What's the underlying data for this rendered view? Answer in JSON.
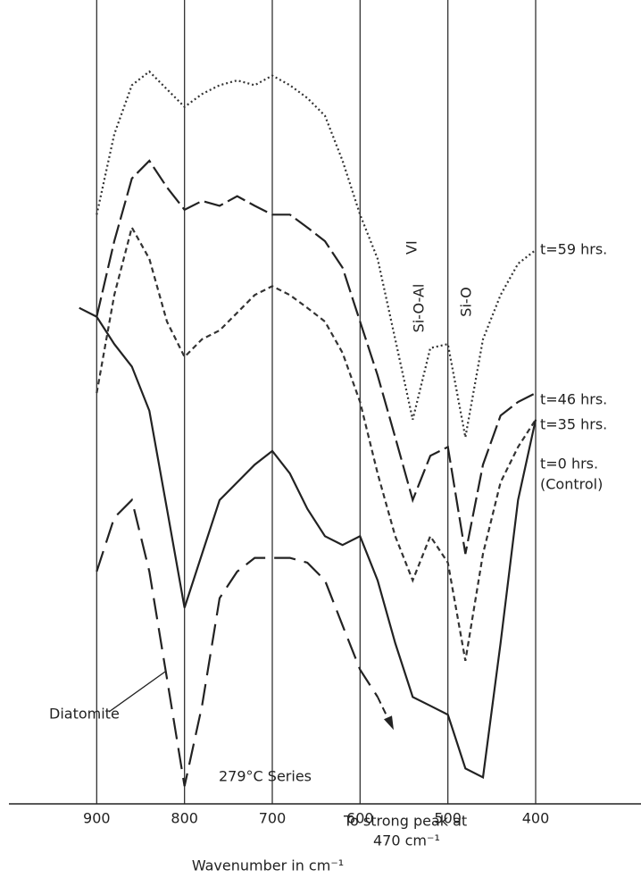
{
  "chart_data": {
    "type": "line",
    "x": [
      940,
      920,
      900,
      880,
      860,
      840,
      820,
      800,
      780,
      760,
      740,
      720,
      700,
      680,
      660,
      640,
      620,
      600,
      580,
      560,
      540,
      520,
      500,
      480,
      460,
      440,
      420,
      400
    ],
    "series": [
      {
        "name": "t=59 hrs.",
        "color": "#333",
        "dash": "2 3",
        "values": [
          null,
          null,
          73.3,
          83.3,
          89.4,
          91.1,
          88.9,
          86.7,
          88.3,
          89.4,
          90,
          89.4,
          90.6,
          89.4,
          87.8,
          85.6,
          80,
          73.3,
          67.8,
          57.8,
          47.8,
          56.7,
          57.2,
          45.6,
          57.8,
          63.3,
          67.2,
          68.9
        ]
      },
      {
        "name": "t=46 hrs.",
        "color": "#222",
        "dash": "22 6",
        "values": [
          null,
          null,
          60.6,
          70,
          77.8,
          80,
          76.7,
          73.9,
          75,
          74.4,
          75.6,
          74.4,
          73.3,
          73.3,
          71.7,
          70,
          66.7,
          60,
          53.3,
          45.6,
          37.8,
          43.3,
          44.4,
          31.1,
          42.2,
          48.3,
          50,
          51.1
        ]
      },
      {
        "name": "t=35 hrs.",
        "color": "#333",
        "dash": "6 4",
        "values": [
          null,
          null,
          51.1,
          63.3,
          71.7,
          67.8,
          60,
          55.6,
          57.8,
          58.9,
          61.1,
          63.3,
          64.4,
          63.3,
          61.7,
          60,
          56.1,
          50,
          41.1,
          33.3,
          27.8,
          33.3,
          30,
          17.8,
          31.1,
          40,
          44.4,
          47.8
        ]
      },
      {
        "name": "t=0 hrs.",
        "color": "#222",
        "dash": "",
        "values": [
          null,
          61.7,
          60.6,
          57.2,
          54.4,
          48.9,
          36.7,
          24.4,
          31.1,
          37.8,
          40,
          42.2,
          43.9,
          41.1,
          36.7,
          33.3,
          32.2,
          33.3,
          27.8,
          20,
          13.3,
          12.2,
          11.1,
          4.4,
          3.3,
          20,
          37.8,
          47.8
        ]
      },
      {
        "name": "Diatomite",
        "color": "#222",
        "dash": "24 10",
        "values": [
          null,
          null,
          28.9,
          35.6,
          37.8,
          28.9,
          15.6,
          2.2,
          12.2,
          25.6,
          28.9,
          30.6,
          30.6,
          30.6,
          30,
          27.8,
          22.2,
          16.7,
          13.3,
          null,
          null,
          null,
          null,
          null,
          null,
          null,
          null,
          null
        ]
      }
    ],
    "xlim": [
      1000,
      280
    ],
    "ylim": [
      0,
      100
    ],
    "xticks": [
      900,
      800,
      700,
      600,
      500,
      400
    ],
    "grid": true,
    "x_label": "Wavenumber in cm⁻¹",
    "annotations": [
      "Si-O-Al",
      "VI",
      "Si-O",
      "(Control)",
      "279°C Series",
      "To strong peak at",
      "470 cm⁻¹"
    ]
  }
}
